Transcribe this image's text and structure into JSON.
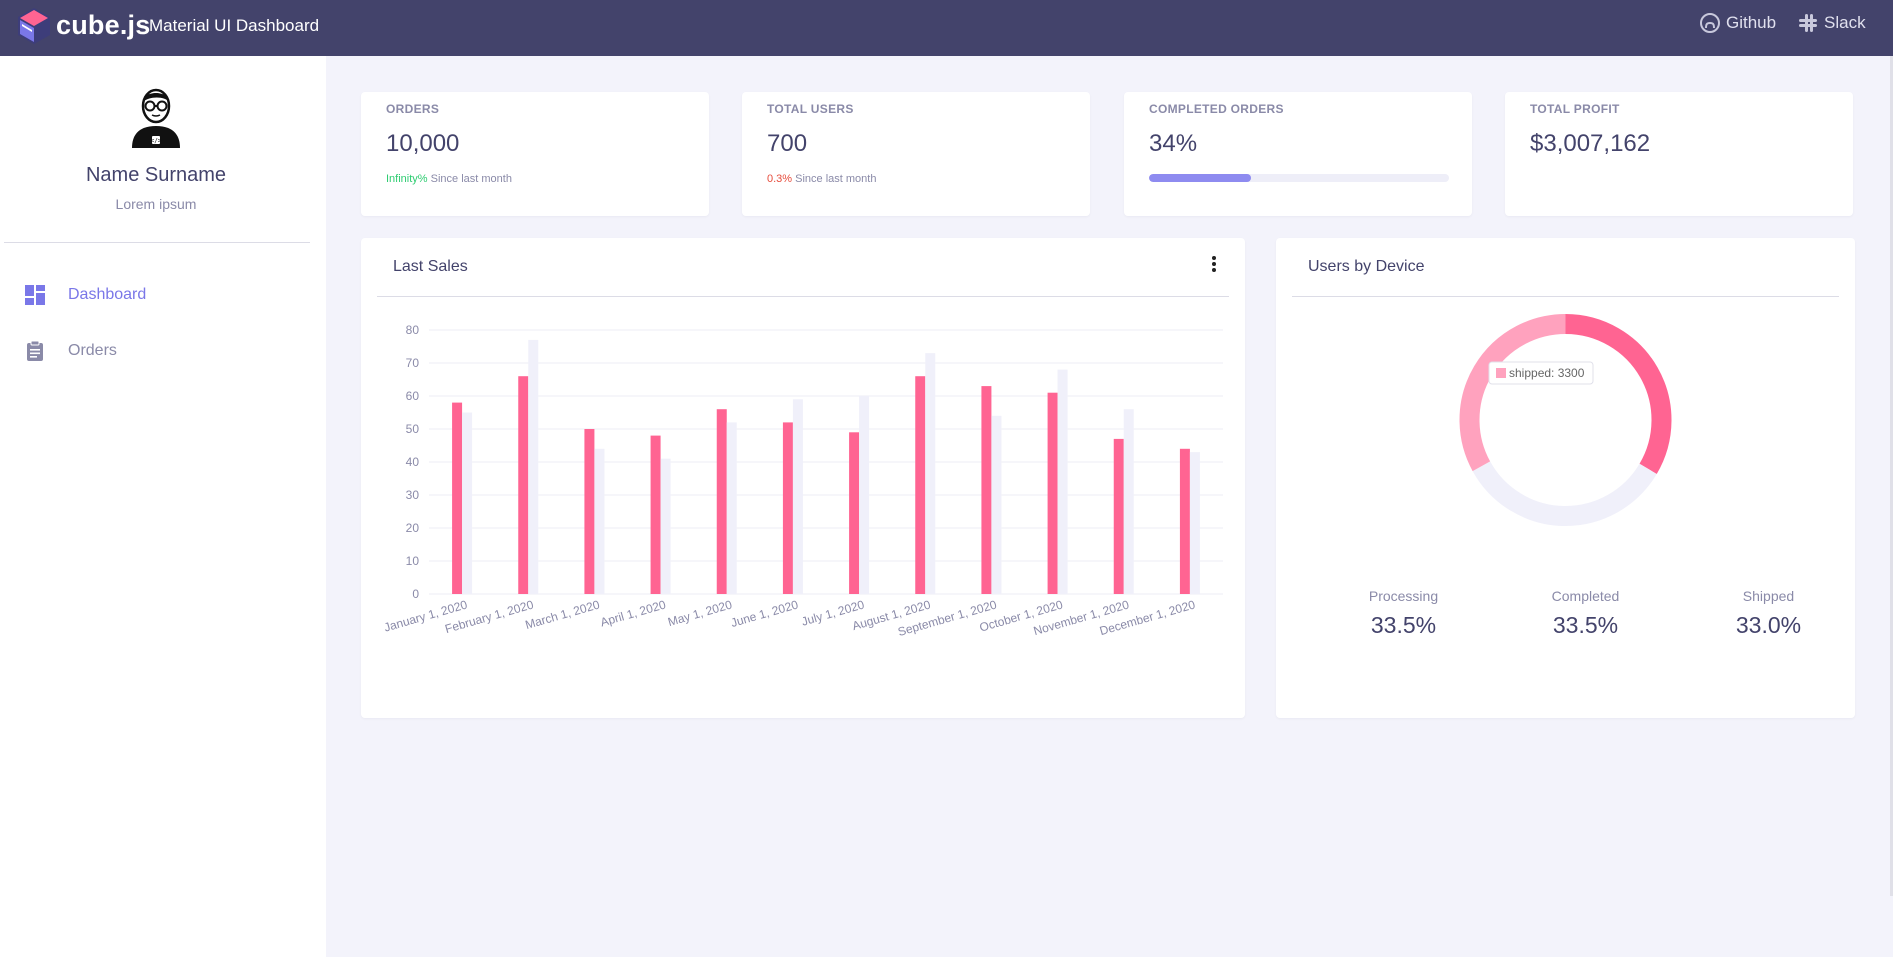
{
  "header": {
    "brand": "cube.js",
    "title": "Material UI Dashboard",
    "links": [
      {
        "label": "Github",
        "icon": "github-icon"
      },
      {
        "label": "Slack",
        "icon": "slack-icon"
      }
    ],
    "bg_color": "#43436b"
  },
  "sidebar": {
    "user_name": "Name Surname",
    "user_subtitle": "Lorem ipsum",
    "items": [
      {
        "label": "Dashboard",
        "icon": "dashboard-icon",
        "active": true
      },
      {
        "label": "Orders",
        "icon": "clipboard-icon",
        "active": false
      }
    ],
    "active_color": "#7a77e8"
  },
  "kpis": [
    {
      "label": "ORDERS",
      "value": "10,000",
      "change": "Infinity%",
      "change_note": "Since last month"
    },
    {
      "label": "TOTAL USERS",
      "value": "700",
      "change": "0.3%",
      "change_note": "Since last month"
    },
    {
      "label": "COMPLETED ORDERS",
      "value": "34%",
      "progress": 0.34
    },
    {
      "label": "TOTAL PROFIT",
      "value": "$3,007,162"
    }
  ],
  "last_sales": {
    "title": "Last Sales"
  },
  "users_by_device": {
    "title": "Users by Device",
    "tooltip": "shipped: 3300",
    "legend": [
      {
        "label": "Processing",
        "value": "33.5%"
      },
      {
        "label": "Completed",
        "value": "33.5%"
      },
      {
        "label": "Shipped",
        "value": "33.0%"
      }
    ]
  },
  "chart_data": [
    {
      "type": "bar",
      "title": "Last Sales",
      "categories": [
        "January 1, 2020",
        "February 1, 2020",
        "March 1, 2020",
        "April 1, 2020",
        "May 1, 2020",
        "June 1, 2020",
        "July 1, 2020",
        "August 1, 2020",
        "September 1, 2020",
        "October 1, 2020",
        "November 1, 2020",
        "December 1, 2020"
      ],
      "series": [
        {
          "values": [
            58,
            66,
            50,
            48,
            56,
            52,
            49,
            66,
            63,
            61,
            47,
            44
          ],
          "color": "#ff6492"
        },
        {
          "values": [
            55,
            77,
            44,
            41,
            52,
            59,
            60,
            73,
            54,
            68,
            56,
            43
          ],
          "color": "#f0f0fa"
        }
      ],
      "yticks": [
        0,
        10,
        20,
        30,
        40,
        50,
        60,
        70,
        80
      ],
      "ylim": [
        0,
        80
      ],
      "grid": true
    },
    {
      "type": "pie",
      "title": "Users by Device",
      "labels": [
        "Processing",
        "Completed",
        "Shipped"
      ],
      "values": [
        33.5,
        33.5,
        33.0
      ],
      "colors": [
        "#ff6492",
        "#f0f0fa",
        "#ffa2be"
      ]
    }
  ]
}
